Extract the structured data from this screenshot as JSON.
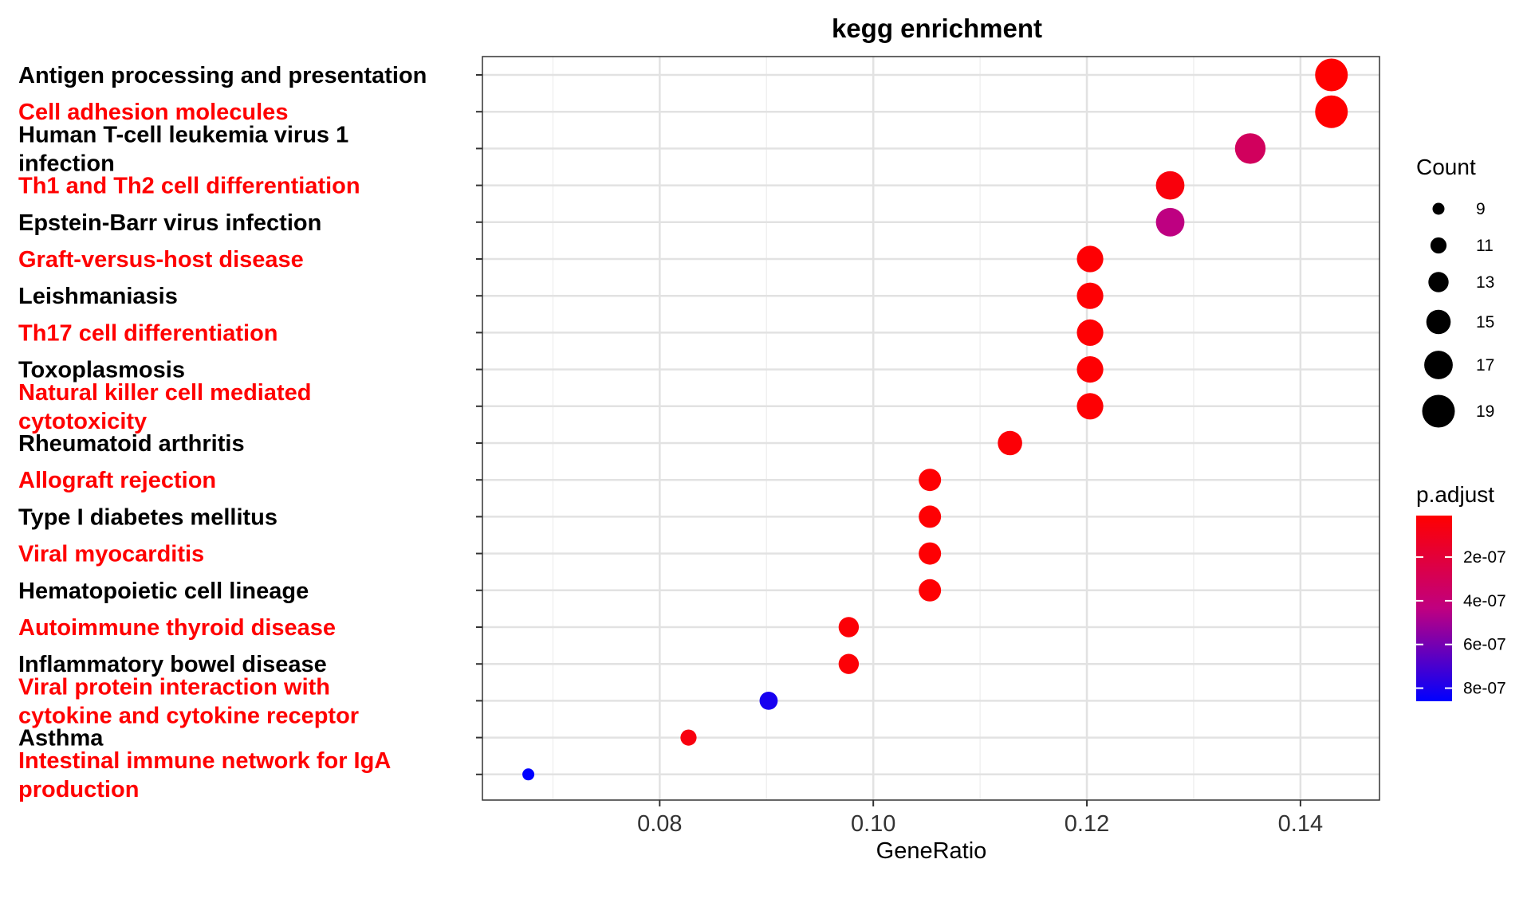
{
  "chart_data": {
    "type": "scatter",
    "title": "kegg enrichment",
    "xlabel": "GeneRatio",
    "ylabel": "",
    "xlim": [
      0.0634,
      0.1474
    ],
    "xticks": [
      0.08,
      0.1,
      0.12,
      0.14
    ],
    "xtick_labels": [
      "0.08",
      "0.10",
      "0.12",
      "0.14"
    ],
    "grid": true,
    "categories": [
      "Antigen processing and presentation",
      "Cell adhesion molecules",
      "Human T-cell leukemia virus 1 infection",
      "Th1 and Th2 cell differentiation",
      "Epstein-Barr virus infection",
      "Graft-versus-host disease",
      "Leishmaniasis",
      "Th17 cell differentiation",
      "Toxoplasmosis",
      "Natural killer cell mediated cytotoxicity",
      "Rheumatoid arthritis",
      "Allograft rejection",
      "Type I diabetes mellitus",
      "Viral myocarditis",
      "Hematopoietic cell lineage",
      "Autoimmune thyroid disease",
      "Inflammatory bowel disease",
      "Viral protein interaction with cytokine and cytokine receptor",
      "Asthma",
      "Intestinal immune network for IgA production"
    ],
    "label_lines": [
      [
        "Antigen processing and presentation"
      ],
      [
        "Cell adhesion molecules"
      ],
      [
        "Human T-cell leukemia virus 1",
        "infection"
      ],
      [
        "Th1 and Th2 cell differentiation"
      ],
      [
        "Epstein-Barr virus infection"
      ],
      [
        "Graft-versus-host disease"
      ],
      [
        "Leishmaniasis"
      ],
      [
        "Th17 cell differentiation"
      ],
      [
        "Toxoplasmosis"
      ],
      [
        "Natural killer cell mediated",
        "cytotoxicity"
      ],
      [
        "Rheumatoid arthritis"
      ],
      [
        "Allograft rejection"
      ],
      [
        "Type I diabetes mellitus"
      ],
      [
        "Viral myocarditis"
      ],
      [
        "Hematopoietic cell lineage"
      ],
      [
        "Autoimmune thyroid disease"
      ],
      [
        "Inflammatory bowel disease"
      ],
      [
        "Viral protein interaction with",
        "cytokine and cytokine receptor"
      ],
      [
        "Asthma"
      ],
      [
        "Intestinal immune network for IgA",
        "production"
      ]
    ],
    "label_colors": [
      "#000000",
      "#ff0000",
      "#000000",
      "#ff0000",
      "#000000",
      "#ff0000",
      "#000000",
      "#ff0000",
      "#000000",
      "#ff0000",
      "#000000",
      "#ff0000",
      "#000000",
      "#ff0000",
      "#000000",
      "#ff0000",
      "#000000",
      "#ff0000",
      "#000000",
      "#ff0000"
    ],
    "gene_ratio": [
      0.1429,
      0.1429,
      0.1353,
      0.1278,
      0.1278,
      0.1203,
      0.1203,
      0.1203,
      0.1203,
      0.1203,
      0.1128,
      0.1053,
      0.1053,
      0.1053,
      0.1053,
      0.0977,
      0.0977,
      0.0902,
      0.0827,
      0.0677
    ],
    "count": [
      19,
      19,
      18,
      17,
      17,
      16,
      16,
      16,
      16,
      16,
      15,
      14,
      14,
      14,
      14,
      13,
      13,
      12,
      11,
      9
    ],
    "p_adjust": [
      1e-08,
      1e-08,
      3.2e-07,
      5e-08,
      4.4e-07,
      2e-08,
      2e-08,
      2e-08,
      2e-08,
      2e-08,
      3e-08,
      2e-08,
      2e-08,
      2e-08,
      2e-08,
      3e-08,
      3e-08,
      8.1e-07,
      6e-08,
      8.6e-07
    ],
    "legend_count": {
      "title": "Count",
      "values": [
        9,
        11,
        13,
        15,
        17,
        19
      ],
      "labels": [
        "9",
        "11",
        "13",
        "15",
        "17",
        "19"
      ]
    },
    "legend_color": {
      "title": "p.adjust",
      "low_color": "#ff0000",
      "high_color": "#0000ff",
      "range": [
        1e-08,
        8.6e-07
      ],
      "ticks": [
        2e-07,
        4e-07,
        6e-07,
        8e-07
      ],
      "tick_labels": [
        "2e-07",
        "4e-07",
        "6e-07",
        "8e-07"
      ]
    },
    "legend_placement": "right"
  }
}
